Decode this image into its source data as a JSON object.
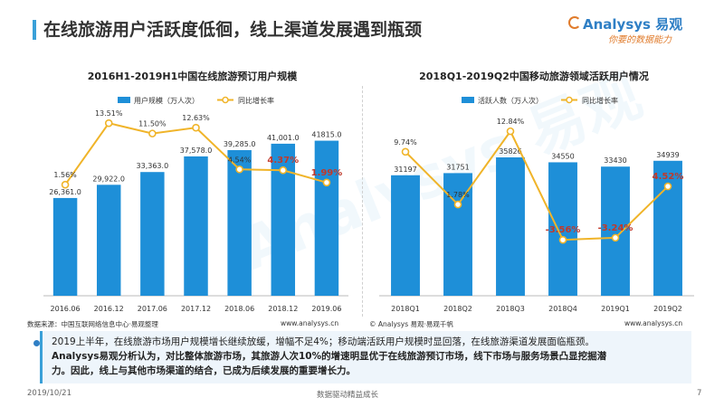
{
  "header": {
    "title": "在线旅游用户活跃度低徊，线上渠道发展遇到瓶颈",
    "logo_brand": "Analysys",
    "logo_cn": "易观",
    "logo_slogan": "你要的数据能力"
  },
  "watermark": "Analysys 易观",
  "colors": {
    "bar": "#1e8fd8",
    "line": "#f0b429",
    "highlight": "#c0392b",
    "accent": "#3aa0d8"
  },
  "chart_data": [
    {
      "type": "bar",
      "title": "2016H1-2019H1中国在线旅游预订用户规模",
      "categories": [
        "2016.06",
        "2016.12",
        "2017.06",
        "2017.12",
        "2018.06",
        "2018.12",
        "2019.06"
      ],
      "series": [
        {
          "name": "用户规模（万人次）",
          "type": "bar",
          "values": [
            26361.0,
            29922.0,
            33363.0,
            37578.0,
            39285.0,
            41001.0,
            41815.0
          ],
          "labels": [
            "26,361.0",
            "29,922.0",
            "33,363.0",
            "37,578.0",
            "39,285.0",
            "41,001.0",
            "41815.0"
          ]
        },
        {
          "name": "同比增长率",
          "type": "line",
          "values": [
            1.56,
            13.51,
            11.5,
            12.63,
            4.54,
            4.37,
            1.99
          ],
          "labels": [
            "1.56%",
            "13.51%",
            "11.50%",
            "12.63%",
            "4.54%",
            "4.37%",
            "1.99%"
          ],
          "highlight": [
            false,
            false,
            false,
            false,
            false,
            true,
            true
          ]
        }
      ],
      "bar_ylim": [
        0,
        50000
      ],
      "line_ylim": [
        -20,
        16
      ],
      "legend": "top-center",
      "grid": false
    },
    {
      "type": "bar",
      "title": "2018Q1-2019Q2中国移动旅游领域活跃用户情况",
      "categories": [
        "2018Q1",
        "2018Q2",
        "2018Q3",
        "2018Q4",
        "2019Q1",
        "2019Q2"
      ],
      "series": [
        {
          "name": "活跃人数（万人次）",
          "type": "bar",
          "values": [
            31197,
            31751,
            35826,
            34550,
            33430,
            34939
          ],
          "labels": [
            "31197",
            "31751",
            "35826",
            "34550",
            "33430",
            "34939"
          ]
        },
        {
          "name": "同比增长率",
          "type": "line",
          "values": [
            9.74,
            1.78,
            12.84,
            -3.56,
            -3.24,
            4.52
          ],
          "labels": [
            "9.74%",
            "1.78%",
            "12.84%",
            "-3.56%",
            "-3.24%",
            "4.52%"
          ],
          "highlight": [
            false,
            false,
            false,
            true,
            true,
            true
          ]
        }
      ],
      "bar_ylim": [
        0,
        48000
      ],
      "line_ylim": [
        -12,
        16
      ],
      "legend": "top-center",
      "grid": false
    }
  ],
  "sources": {
    "left": "数据来源：中国互联网络信息中心·易观整理",
    "left_url": "www.analysys.cn",
    "right": "© Analysys 易观·易观千帆",
    "right_url": "www.analysys.cn"
  },
  "conclusion": {
    "line1": "2019上半年，在线旅游市场用户规模增长继续放缓，增幅不足4%；移动端活跃用户规模时显回落，在线旅游渠道发展面临瓶颈。",
    "line2": "Analysys易观分析认为，对比整体旅游市场，其旅游人次10%的增速明显优于在线旅游预订市场，线下市场与服务场景凸显挖掘潜",
    "line3": "力。因此，线上与其他市场渠道的结合，已成为后续发展的重要增长力。"
  },
  "footer": {
    "date": "2019/10/21",
    "slogan": "数据驱动精益成长",
    "page": "7"
  }
}
